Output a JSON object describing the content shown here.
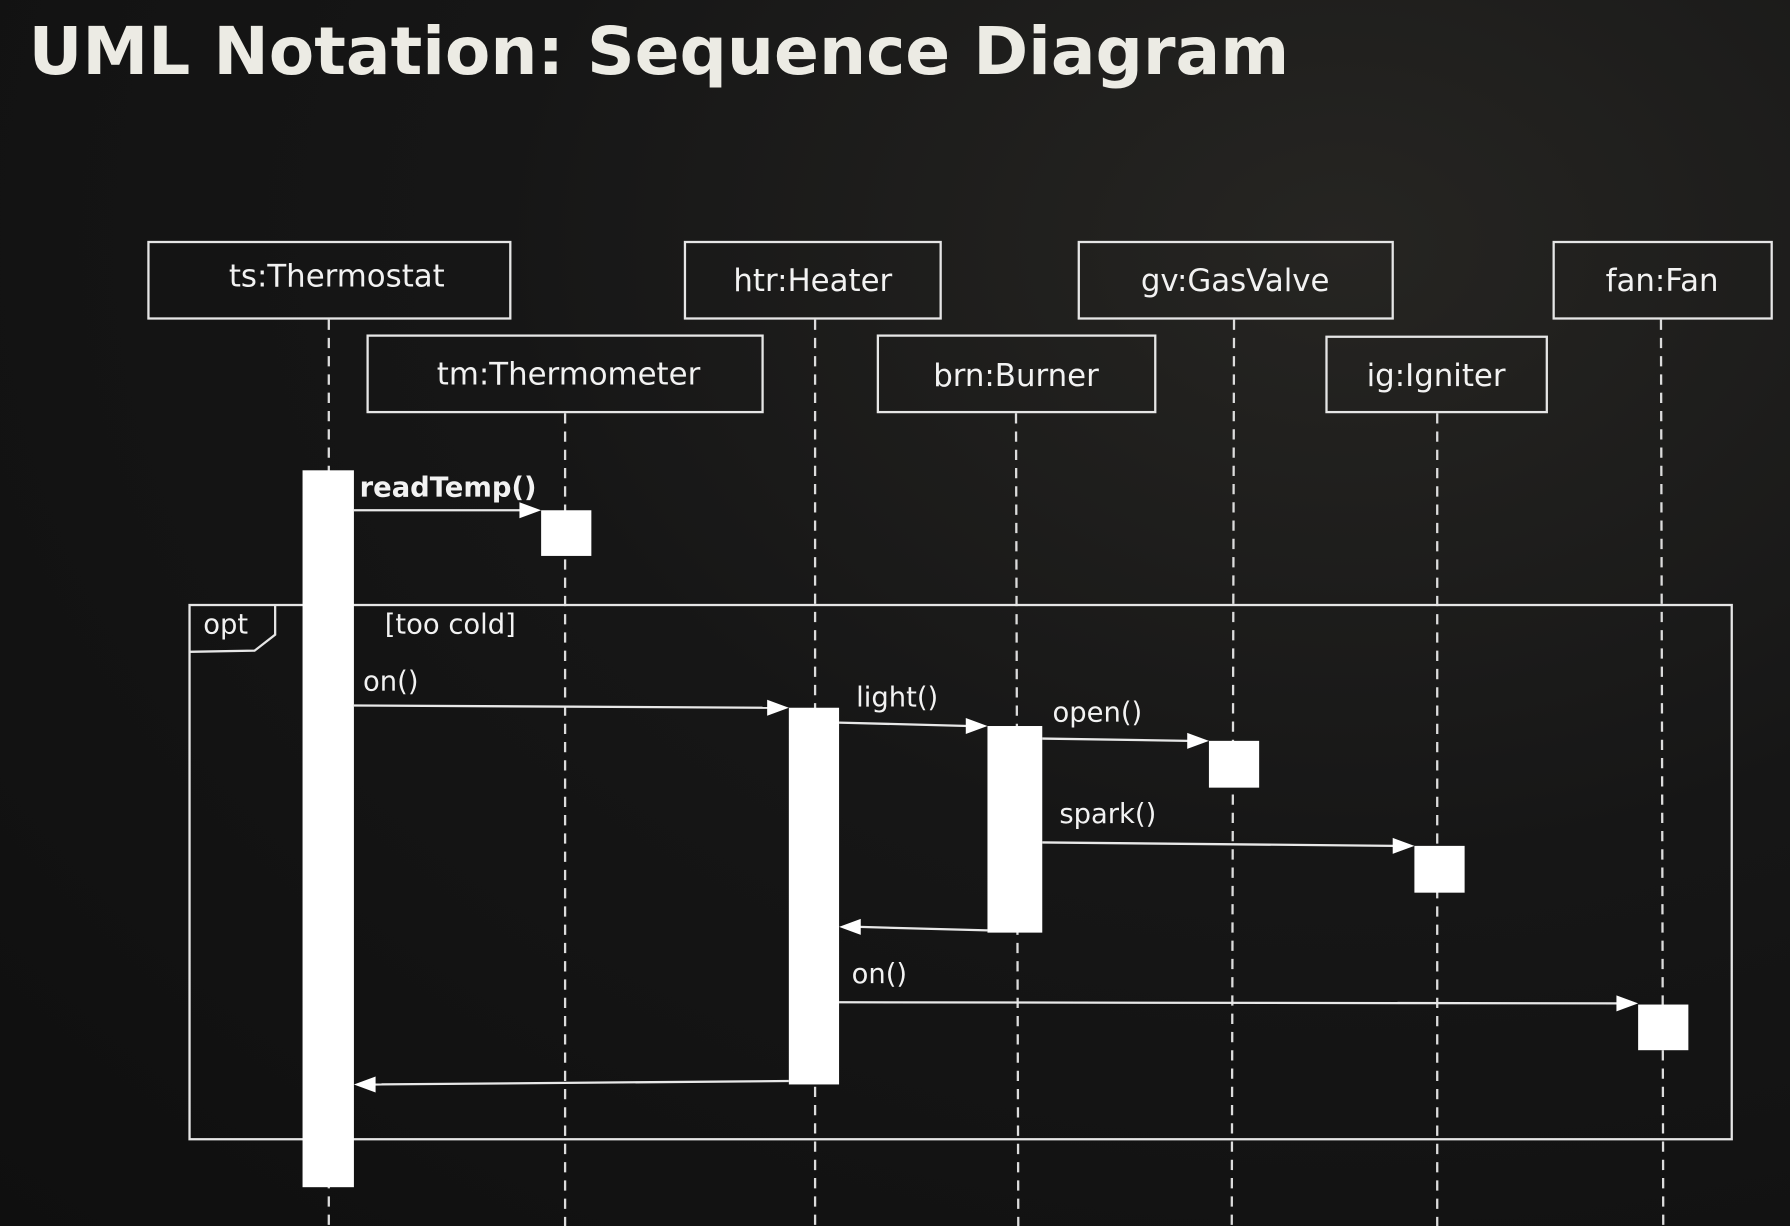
{
  "title": "UML Notation: Sequence Diagram",
  "lifelines": {
    "thermostat": "ts:Thermostat",
    "thermometer": "tm:Thermometer",
    "heater": "htr:Heater",
    "burner": "brn:Burner",
    "gasvalve": "gv:GasValve",
    "igniter": "ig:Igniter",
    "fan": "fan:Fan"
  },
  "fragment": {
    "operator": "opt",
    "guard": "[too cold]"
  },
  "messages": {
    "readTemp": "readTemp()",
    "heater_on": "on()",
    "light": "light()",
    "open": "open()",
    "spark": "spark()",
    "fan_on": "on()"
  }
}
